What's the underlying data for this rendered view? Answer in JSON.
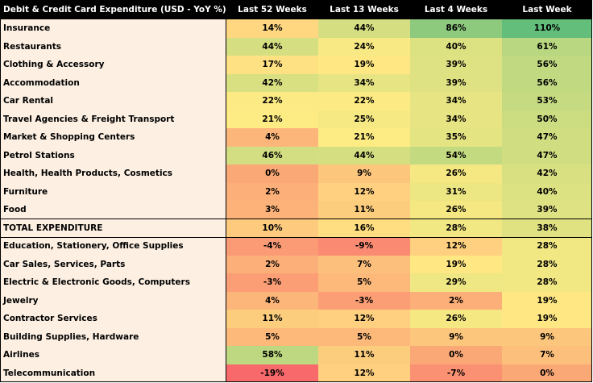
{
  "chart_data": {
    "type": "heatmap",
    "title": "Debit & Credit Card Expenditure (USD - YoY %)",
    "columns": [
      "Last 52 Weeks",
      "Last 13 Weeks",
      "Last 4 Weeks",
      "Last Week"
    ],
    "unit": "%",
    "rows": [
      {
        "label": "Insurance",
        "values": [
          14,
          44,
          86,
          110
        ]
      },
      {
        "label": "Restaurants",
        "values": [
          44,
          24,
          40,
          61
        ]
      },
      {
        "label": "Clothing & Accessory",
        "values": [
          17,
          19,
          39,
          56
        ]
      },
      {
        "label": "Accommodation",
        "values": [
          42,
          34,
          39,
          56
        ]
      },
      {
        "label": "Car Rental",
        "values": [
          22,
          22,
          34,
          53
        ]
      },
      {
        "label": "Travel Agencies & Freight Transport",
        "values": [
          21,
          25,
          34,
          50
        ]
      },
      {
        "label": "Market & Shopping Centers",
        "values": [
          4,
          21,
          35,
          47
        ]
      },
      {
        "label": "Petrol Stations",
        "values": [
          46,
          44,
          54,
          47
        ]
      },
      {
        "label": "Health, Health Products, Cosmetics",
        "values": [
          0,
          9,
          26,
          42
        ]
      },
      {
        "label": "Furniture",
        "values": [
          2,
          12,
          31,
          40
        ]
      },
      {
        "label": "Food",
        "values": [
          3,
          11,
          26,
          39
        ]
      },
      {
        "label": "TOTAL EXPENDITURE",
        "values": [
          10,
          16,
          28,
          38
        ]
      },
      {
        "label": "Education, Stationery, Office Supplies",
        "values": [
          -4,
          -9,
          12,
          28
        ]
      },
      {
        "label": "Car Sales, Services, Parts",
        "values": [
          2,
          7,
          19,
          28
        ]
      },
      {
        "label": "Electric & Electronic Goods, Computers",
        "values": [
          -3,
          5,
          29,
          28
        ]
      },
      {
        "label": "Jewelry",
        "values": [
          4,
          -3,
          2,
          19
        ]
      },
      {
        "label": "Contractor Services",
        "values": [
          11,
          12,
          26,
          19
        ]
      },
      {
        "label": "Building Supplies, Hardware",
        "values": [
          5,
          5,
          9,
          9
        ]
      },
      {
        "label": "Airlines",
        "values": [
          58,
          11,
          0,
          7
        ]
      },
      {
        "label": "Telecommunication",
        "values": [
          -19,
          12,
          -7,
          0
        ]
      }
    ],
    "total_row_label": "TOTAL EXPENDITURE",
    "color_scale": {
      "low": "#f8696b",
      "mid": "#ffeb84",
      "high": "#63be7b",
      "low_value": -19,
      "mid_value": 20,
      "high_value": 110
    },
    "colors": {
      "header_bg": "#000000",
      "header_text": "#ffffff",
      "label_bg": "#fdf0e3",
      "border": "#000000"
    }
  }
}
